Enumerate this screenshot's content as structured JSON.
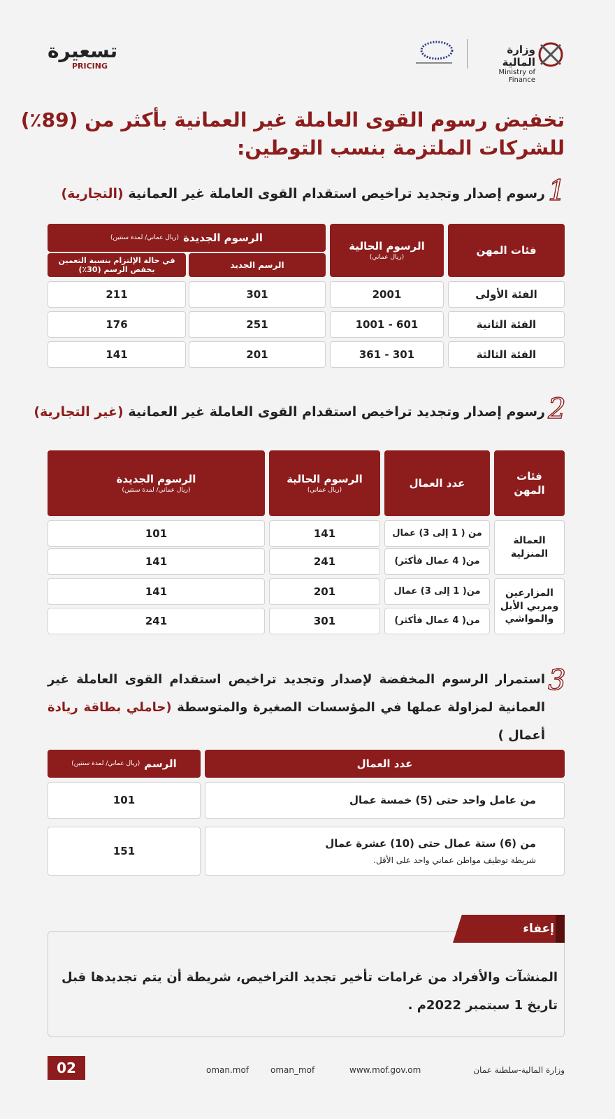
{
  "header": {
    "brand_name": "تسعيرة",
    "brand_sub": "PRICING",
    "ministry_ar": "وزارة المالية",
    "ministry_en": "Ministry of Finance"
  },
  "title": [
    "تخفيض رسوم القوى العاملة غير العمانية بأكثر من (89٪)",
    "للشركات الملتزمة بنسب التوطين:"
  ],
  "section1": {
    "number": "1",
    "heading": "رسوم إصدار وتجديد تراخيص استقدام القوى العاملة غير العمانية",
    "highlight": "(التجارية)",
    "table": {
      "headers": {
        "category": "فئات المهن",
        "current": "الرسوم الحالية",
        "current_unit": "(ريال عماني)",
        "new": "الرسوم الجديدة",
        "new_unit": "(ريال عماني/ لمدة سنتين)",
        "new_fee": "الرسم الجديد",
        "reduced_fee": "في حالة الإلتزام بنسبة التعمين يخفض الرسم (30٪)"
      },
      "rows": [
        [
          "الفئة الأولى",
          "2001",
          "301",
          "211"
        ],
        [
          "الفئة الثانية",
          "1001 - 601",
          "251",
          "176"
        ],
        [
          "الفئة الثالثة",
          "361 - 301",
          "201",
          "141"
        ]
      ]
    }
  },
  "section2": {
    "number": "2",
    "heading": "رسوم إصدار وتجديد تراخيص استقدام القوى العاملة غير العمانية",
    "highlight": "(غير التجارية)",
    "table": {
      "headers": {
        "category": "فئات المهن",
        "workers": "عدد العمال",
        "current": "الرسوم الحالية",
        "current_unit": "(ريال عماني)",
        "new": "الرسوم الجديدة",
        "new_unit": "(ريال عماني/ لمدة سنتين)"
      },
      "groups": [
        {
          "category": "العمالة المنزلية",
          "rows": [
            [
              "من ( 1 إلى 3) عمال",
              "141",
              "101"
            ],
            [
              "من( 4 عمال فأكثر)",
              "241",
              "141"
            ]
          ]
        },
        {
          "category": "المزارعين ومربي الأبل والمواشي",
          "rows": [
            [
              "من( 1 إلى 3) عمال",
              "201",
              "141"
            ],
            [
              "من( 4 عمال فأكثر)",
              "301",
              "241"
            ]
          ]
        }
      ]
    }
  },
  "section3": {
    "number": "3",
    "text": "استمرار الرسوم المخفضة لإصدار وتجديد تراخيص استقدام القوى العاملة غير العمانية لمزاولة عملها في المؤسسات الصغيرة والمتوسطة",
    "highlight": "(حاملي بطاقة ريادة",
    "tail": "أعمال )",
    "table": {
      "headers": {
        "workers": "عدد العمال",
        "fee": "الرسم",
        "fee_unit": "(ريال عماني/ لمدة سنتين)"
      },
      "rows": [
        {
          "workers": "من عامل واحد حتى (5) خمسة عمال",
          "fee": "101"
        },
        {
          "workers": "من (6) ستة عمال حتى (10) عشرة عمال",
          "note": "شريطة توظيف مواطن عماني واحد على الأقل.",
          "fee": "151"
        }
      ]
    }
  },
  "exemption": {
    "title": "إعفاء",
    "text": "المنشآت والأفراد من غرامات تأخير تجديد التراخيص، شريطة أن يتم تجديدها قبل تاريخ 1 سبتمبر 2022م ."
  },
  "footer": {
    "page": "02",
    "ministry": "وزارة المالية-سلطنة عمان",
    "website": "www.mof.gov.om",
    "twitter": "oman_mof",
    "instagram": "oman.mof"
  }
}
